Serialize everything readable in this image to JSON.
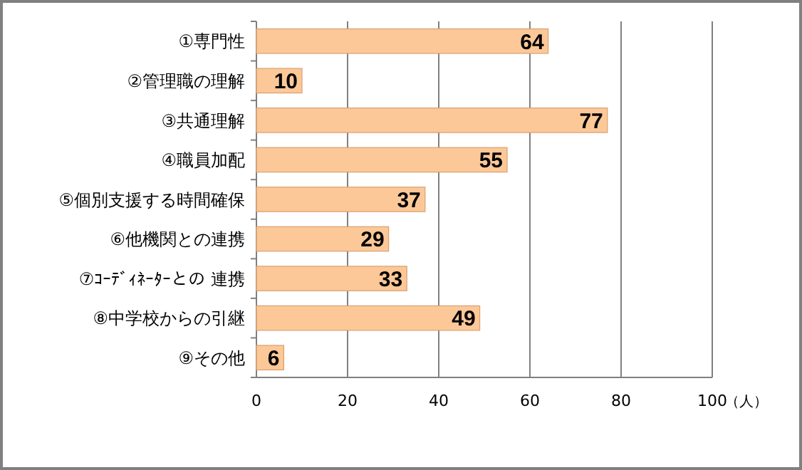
{
  "chart_data": {
    "type": "bar",
    "orientation": "horizontal",
    "categories": [
      "①専門性",
      "②管理職の理解",
      "③共通理解",
      "④職員加配",
      "⑤個別支援する時間確保",
      "⑥他機関との連携",
      "⑦ｺｰﾃﾞｨﾈｰﾀｰとの 連携",
      "⑧中学校からの引継",
      "⑨その他"
    ],
    "values": [
      64,
      10,
      77,
      55,
      37,
      29,
      33,
      49,
      6
    ],
    "color": "#fcc898",
    "xlim": [
      0,
      100
    ],
    "xticks": [
      0,
      20,
      40,
      60,
      80,
      100
    ],
    "xlabel": "（人）",
    "grid": "x",
    "data_labels": true
  }
}
